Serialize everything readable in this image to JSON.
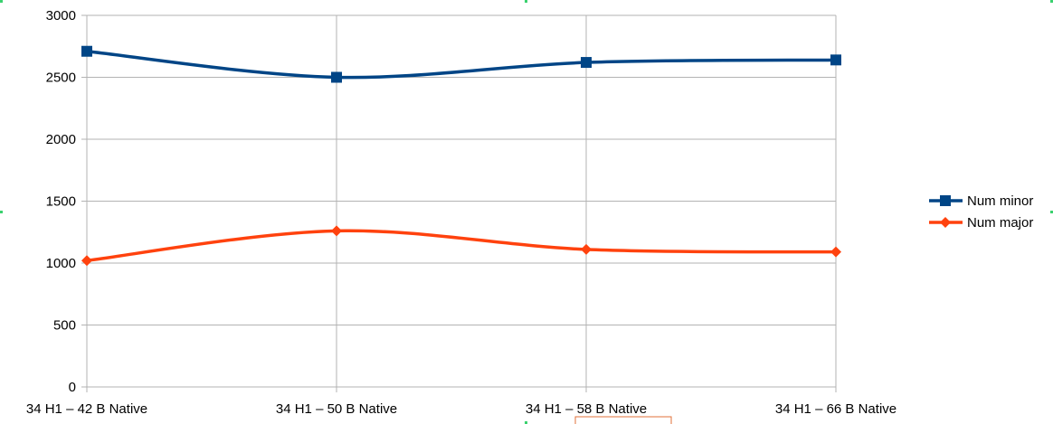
{
  "chart_data": {
    "type": "line",
    "categories": [
      "34 H1 – 42 B Native",
      "34 H1 – 50 B Native",
      "34 H1 – 58 B Native",
      "34 H1 – 66 B Native"
    ],
    "series": [
      {
        "name": "Num minor",
        "values": [
          2710,
          2500,
          2620,
          2640
        ],
        "color": "#004586",
        "marker": "square"
      },
      {
        "name": "Num major",
        "values": [
          1020,
          1260,
          1110,
          1090
        ],
        "color": "#ff420e",
        "marker": "diamond"
      }
    ],
    "title": "",
    "xlabel": "",
    "ylabel": "",
    "ylim": [
      0,
      3000
    ],
    "yticks": [
      0,
      500,
      1000,
      1500,
      2000,
      2500,
      3000
    ],
    "grid": true,
    "smooth": true,
    "legend_position": "right"
  }
}
